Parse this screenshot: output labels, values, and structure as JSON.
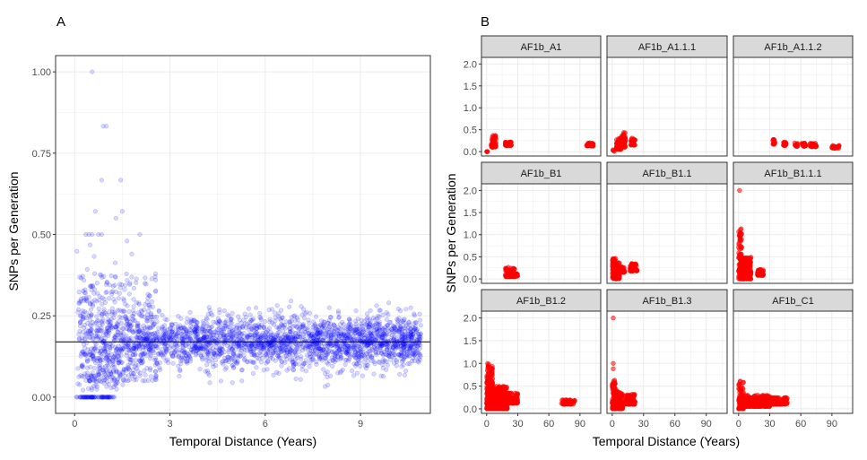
{
  "panel_labels": {
    "a": "A",
    "b": "B"
  },
  "colors": {
    "scatter_a": "#0000ff",
    "scatter_b": "#ff0000",
    "strip_fill": "#d9d9d9",
    "grid": "#ebebeb",
    "frame": "#333333"
  },
  "chart_data": [
    {
      "type": "scatter",
      "panel": "A",
      "xlabel": "Temporal Distance (Years)",
      "ylabel": "SNPs per Generation",
      "xlim": [
        -0.6,
        11.2
      ],
      "ylim": [
        -0.05,
        1.05
      ],
      "x_ticks": [
        0,
        3,
        6,
        9
      ],
      "x_tick_labels": [
        "0",
        "3",
        "6",
        "9"
      ],
      "y_ticks": [
        0,
        0.25,
        0.5,
        0.75,
        1
      ],
      "y_tick_labels": [
        "0.00",
        "0.25",
        "0.50",
        "0.75",
        "1.00"
      ],
      "hline": 0.17,
      "grid": true,
      "point_alpha": 0.15,
      "distribution_summary": {
        "x_range": [
          0.05,
          10.9
        ],
        "y_center": 0.17,
        "y_spread": 0.04
      },
      "notable_points": [
        {
          "x": 0.55,
          "y": 1.0
        },
        {
          "x": 0.9,
          "y": 0.833
        },
        {
          "x": 1.0,
          "y": 0.833
        },
        {
          "x": 0.85,
          "y": 0.667
        },
        {
          "x": 1.45,
          "y": 0.667
        },
        {
          "x": 0.65,
          "y": 0.571
        },
        {
          "x": 1.5,
          "y": 0.571
        },
        {
          "x": 1.3,
          "y": 0.55
        },
        {
          "x": 2.05,
          "y": 0.5
        },
        {
          "x": 0.35,
          "y": 0.5
        },
        {
          "x": 0.45,
          "y": 0.5
        },
        {
          "x": 0.55,
          "y": 0.5
        },
        {
          "x": 0.75,
          "y": 0.5
        },
        {
          "x": 0.85,
          "y": 0.5
        },
        {
          "x": 1.65,
          "y": 0.48
        },
        {
          "x": 1.8,
          "y": 0.44
        },
        {
          "x": 2.55,
          "y": 0.36
        }
      ]
    },
    {
      "type": "scatter",
      "panel": "B",
      "faceted": true,
      "xlabel": "Temporal Distance (Years)",
      "ylabel": "SNPs per Generation",
      "xlim": [
        -5,
        110
      ],
      "ylim": [
        -0.1,
        2.15
      ],
      "x_ticks": [
        0,
        30,
        60,
        90
      ],
      "x_tick_labels": [
        "0",
        "30",
        "60",
        "90"
      ],
      "y_ticks": [
        0,
        0.5,
        1,
        1.5,
        2
      ],
      "y_tick_labels": [
        "0.0",
        "0.5",
        "1.0",
        "1.5",
        "2.0"
      ],
      "grid": true,
      "facets": [
        {
          "label": "AF1b_A1",
          "clusters": [
            {
              "x": [
                0,
                1
              ],
              "y": [
                0.0,
                0.0
              ],
              "n": 4
            },
            {
              "x": [
                4,
                9
              ],
              "y": [
                0.1,
                0.38
              ],
              "n": 60
            },
            {
              "x": [
                18,
                24
              ],
              "y": [
                0.14,
                0.22
              ],
              "n": 60
            },
            {
              "x": [
                96,
                103
              ],
              "y": [
                0.13,
                0.2
              ],
              "n": 40
            }
          ]
        },
        {
          "label": "AF1b_A1.1.1",
          "clusters": [
            {
              "x": [
                0,
                2
              ],
              "y": [
                0.0,
                0.05
              ],
              "n": 4
            },
            {
              "x": [
                4,
                9
              ],
              "y": [
                0.05,
                0.32
              ],
              "n": 50
            },
            {
              "x": [
                9,
                13
              ],
              "y": [
                0.1,
                0.45
              ],
              "n": 50
            },
            {
              "x": [
                18,
                22
              ],
              "y": [
                0.15,
                0.32
              ],
              "n": 40
            }
          ]
        },
        {
          "label": "AF1b_A1.1.2",
          "clusters": [
            {
              "x": [
                33,
                35
              ],
              "y": [
                0.17,
                0.28
              ],
              "n": 20
            },
            {
              "x": [
                43,
                46
              ],
              "y": [
                0.14,
                0.22
              ],
              "n": 20
            },
            {
              "x": [
                54,
                57
              ],
              "y": [
                0.12,
                0.2
              ],
              "n": 20
            },
            {
              "x": [
                61,
                65
              ],
              "y": [
                0.12,
                0.2
              ],
              "n": 20
            },
            {
              "x": [
                69,
                75
              ],
              "y": [
                0.11,
                0.2
              ],
              "n": 30
            },
            {
              "x": [
                90,
                97
              ],
              "y": [
                0.08,
                0.15
              ],
              "n": 30
            }
          ]
        },
        {
          "label": "AF1b_B1",
          "clusters": [
            {
              "x": [
                18,
                27
              ],
              "y": [
                0.05,
                0.28
              ],
              "n": 80
            },
            {
              "x": [
                27,
                30
              ],
              "y": [
                0.05,
                0.13
              ],
              "n": 20
            }
          ]
        },
        {
          "label": "AF1b_B1.1",
          "clusters": [
            {
              "x": [
                0,
                7
              ],
              "y": [
                0.0,
                0.47
              ],
              "n": 150
            },
            {
              "x": [
                7,
                12
              ],
              "y": [
                0.15,
                0.3
              ],
              "n": 50
            },
            {
              "x": [
                17,
                24
              ],
              "y": [
                0.18,
                0.35
              ],
              "n": 80
            }
          ]
        },
        {
          "label": "AF1b_B1.1.1",
          "clusters": [
            {
              "x": [
                0,
                3
              ],
              "y": [
                0.0,
                1.15
              ],
              "n": 80
            },
            {
              "x": [
                2,
                12
              ],
              "y": [
                0.0,
                0.5
              ],
              "n": 250
            },
            {
              "x": [
                18,
                24
              ],
              "y": [
                0.08,
                0.22
              ],
              "n": 60
            }
          ]
        },
        {
          "label": "AF1b_B1.2",
          "clusters": [
            {
              "x": [
                0,
                6
              ],
              "y": [
                0.0,
                1.0
              ],
              "n": 200
            },
            {
              "x": [
                3,
                20
              ],
              "y": [
                0.0,
                0.5
              ],
              "n": 400
            },
            {
              "x": [
                20,
                30
              ],
              "y": [
                0.12,
                0.35
              ],
              "n": 100
            },
            {
              "x": [
                72,
                85
              ],
              "y": [
                0.1,
                0.2
              ],
              "n": 60
            }
          ]
        },
        {
          "label": "AF1b_B1.3",
          "clusters": [
            {
              "x": [
                0,
                3
              ],
              "y": [
                0.0,
                0.65
              ],
              "n": 100
            },
            {
              "x": [
                3,
                10
              ],
              "y": [
                0.0,
                0.4
              ],
              "n": 120
            },
            {
              "x": [
                12,
                22
              ],
              "y": [
                0.1,
                0.32
              ],
              "n": 80
            }
          ]
        },
        {
          "label": "AF1b_C1",
          "clusters": [
            {
              "x": [
                0,
                5
              ],
              "y": [
                0.0,
                0.62
              ],
              "n": 100
            },
            {
              "x": [
                5,
                30
              ],
              "y": [
                0.05,
                0.3
              ],
              "n": 250
            },
            {
              "x": [
                30,
                47
              ],
              "y": [
                0.1,
                0.25
              ],
              "n": 120
            }
          ]
        }
      ],
      "outliers": [
        {
          "facet": "AF1b_B1.1.1",
          "x": 1,
          "y": 2.0
        },
        {
          "facet": "AF1b_B1.3",
          "x": 1,
          "y": 2.0
        },
        {
          "facet": "AF1b_B1.3",
          "x": 1,
          "y": 1.0
        },
        {
          "facet": "AF1b_B1.3",
          "x": 1,
          "y": 0.88
        },
        {
          "facet": "AF1b_B1.2",
          "x": 1,
          "y": 1.0
        }
      ]
    }
  ]
}
